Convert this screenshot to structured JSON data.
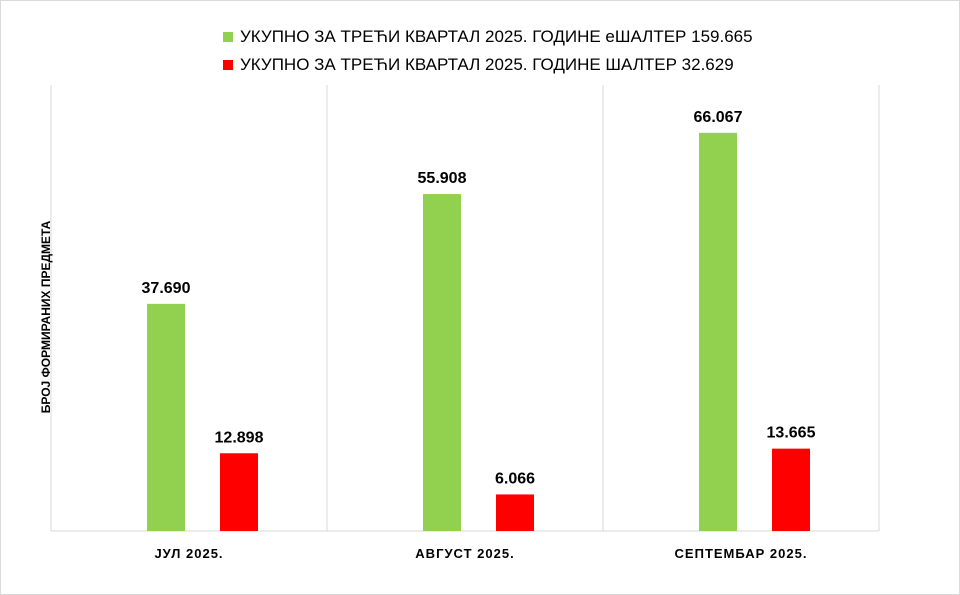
{
  "chart_data": {
    "type": "bar",
    "categories": [
      "ЈУЛ 2025.",
      "АВГУСТ 2025.",
      "СЕПТЕМБАР 2025."
    ],
    "series": [
      {
        "name": "УКУПНО ЗА ТРЕЋИ КВАРТАЛ 2025. ГОДИНЕ еШАЛТЕР 159.665",
        "color": "#92d050",
        "values": [
          37690,
          55908,
          66067
        ],
        "labels": [
          "37.690",
          "55.908",
          "66.067"
        ]
      },
      {
        "name": "УКУПНО ЗА ТРЕЋИ КВАРТАЛ 2025. ГОДИНЕ ШАЛТЕР 32.629",
        "color": "#ff0000",
        "values": [
          12898,
          6066,
          13665
        ],
        "labels": [
          "12.898",
          "6.066",
          "13.665"
        ]
      }
    ],
    "title": "",
    "xlabel": "",
    "ylabel": "БРОЈ ФОРМИРАНИХ ПРЕДМЕТА",
    "ylim": [
      0,
      74000
    ],
    "legend_position": "top",
    "grid": "vertical-category-separators"
  }
}
